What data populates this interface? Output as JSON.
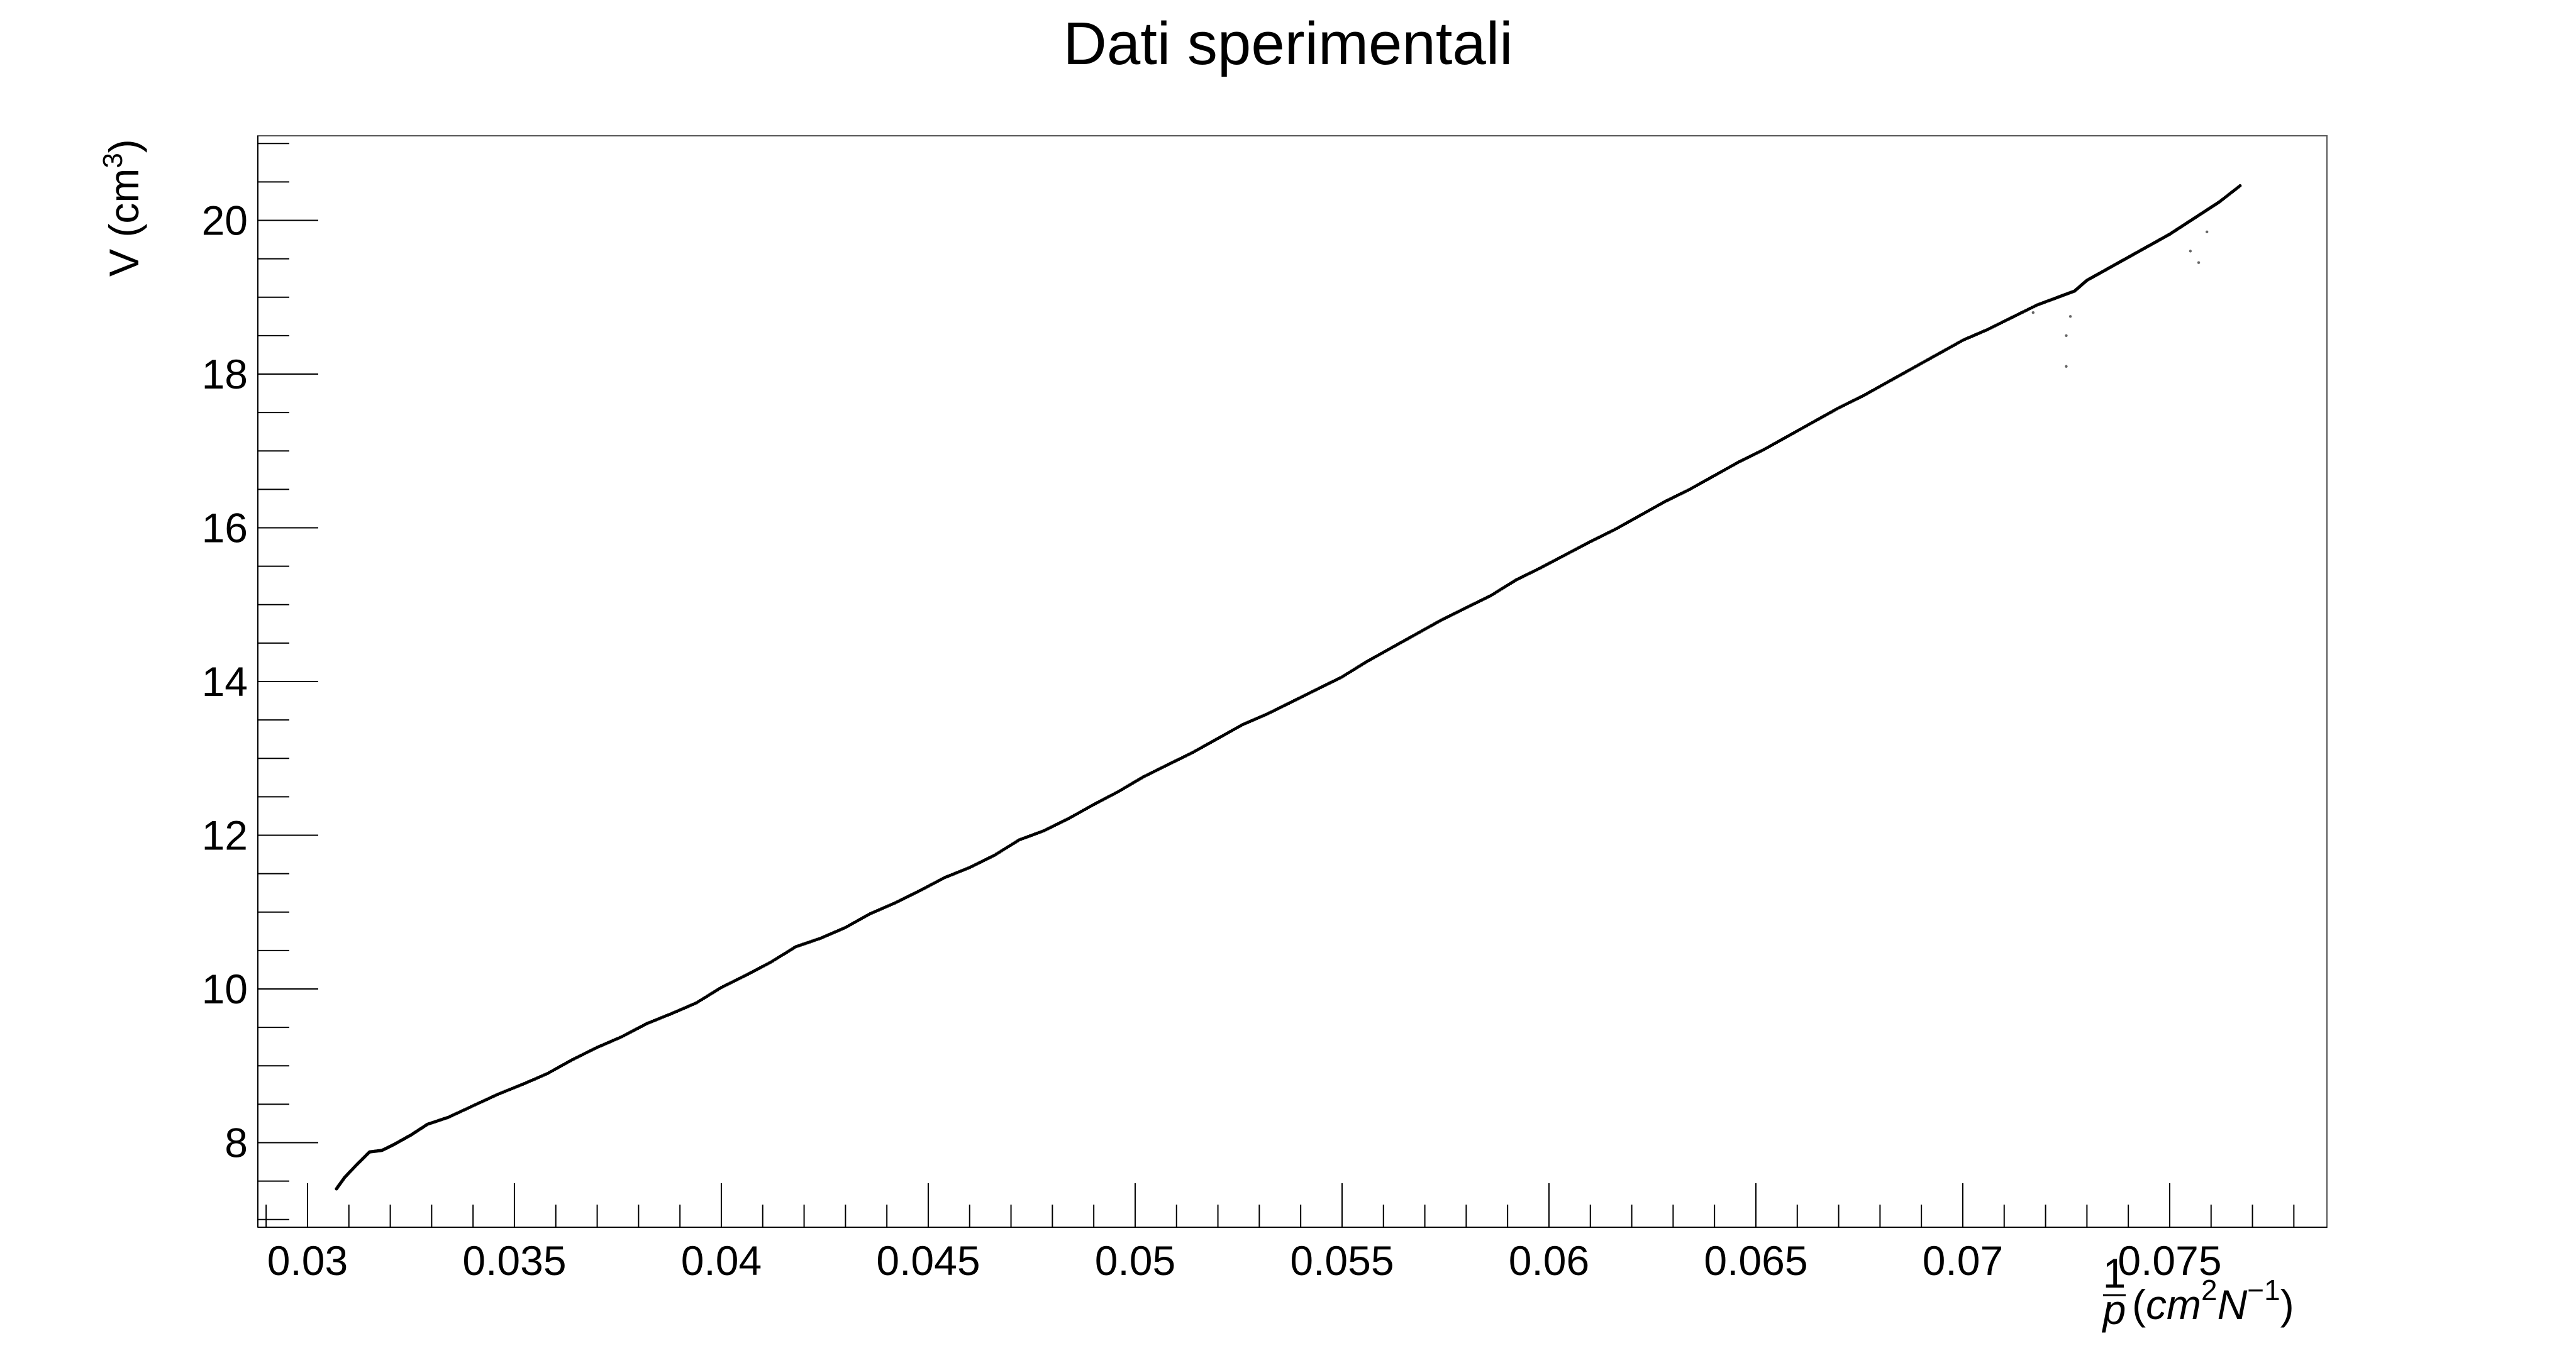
{
  "chart_data": {
    "type": "scatter",
    "title": "Dati sperimentali",
    "xlabel": {
      "fraction_numerator": "1",
      "fraction_denominator": "p",
      "open": "(",
      "unit_1": "cm",
      "unit_1_exp": "2",
      "unit_2": "N",
      "unit_2_exp": "−1",
      "close": ")"
    },
    "ylabel": {
      "text": "V (cm",
      "exp": "3",
      "close": ")"
    },
    "xlim": [
      0.0288,
      0.0788
    ],
    "ylim": [
      6.9,
      21.1
    ],
    "x_ticks": [
      {
        "value": 0.03,
        "label": "0.03"
      },
      {
        "value": 0.035,
        "label": "0.035"
      },
      {
        "value": 0.04,
        "label": "0.04"
      },
      {
        "value": 0.045,
        "label": "0.045"
      },
      {
        "value": 0.05,
        "label": "0.05"
      },
      {
        "value": 0.055,
        "label": "0.055"
      },
      {
        "value": 0.06,
        "label": "0.06"
      },
      {
        "value": 0.065,
        "label": "0.065"
      },
      {
        "value": 0.07,
        "label": "0.07"
      },
      {
        "value": 0.075,
        "label": "0.075"
      }
    ],
    "y_ticks": [
      {
        "value": 8,
        "label": "8"
      },
      {
        "value": 10,
        "label": "10"
      },
      {
        "value": 12,
        "label": "12"
      },
      {
        "value": 14,
        "label": "14"
      },
      {
        "value": 16,
        "label": "16"
      },
      {
        "value": 18,
        "label": "18"
      },
      {
        "value": 20,
        "label": "20"
      }
    ],
    "x_minor_step": 0.001,
    "y_minor_step": 0.5,
    "grid": false,
    "legend": "none",
    "marker_color": "#000000",
    "series": [
      {
        "x": [
          0.0307,
          0.0309,
          0.0312,
          0.0315,
          0.0318,
          0.0321,
          0.0325,
          0.0329,
          0.0334,
          0.034,
          0.0346,
          0.0352,
          0.0358,
          0.0364,
          0.037,
          0.0376,
          0.0382,
          0.0388,
          0.0394,
          0.04,
          0.0406,
          0.0412,
          0.0418,
          0.0424,
          0.043,
          0.0436,
          0.0442,
          0.0448,
          0.0454,
          0.046,
          0.0466,
          0.0472,
          0.0478,
          0.0484,
          0.049,
          0.0496,
          0.0502,
          0.0508,
          0.0514,
          0.052,
          0.0526,
          0.0532,
          0.0538,
          0.0544,
          0.055,
          0.0556,
          0.0562,
          0.0568,
          0.0574,
          0.058,
          0.0586,
          0.0592,
          0.0598,
          0.0604,
          0.061,
          0.0616,
          0.0622,
          0.0628,
          0.0634,
          0.064,
          0.0646,
          0.0652,
          0.0658,
          0.0664,
          0.067,
          0.0676,
          0.0682,
          0.0688,
          0.0694,
          0.07,
          0.0706,
          0.0712,
          0.0718,
          0.0723,
          0.0727,
          0.073,
          0.0734,
          0.0738,
          0.0742,
          0.0746,
          0.075,
          0.0754,
          0.0758,
          0.0762,
          0.0767
        ],
        "y": [
          7.4,
          7.55,
          7.72,
          7.88,
          7.9,
          7.98,
          8.1,
          8.24,
          8.33,
          8.48,
          8.63,
          8.76,
          8.9,
          9.08,
          9.24,
          9.38,
          9.55,
          9.68,
          9.82,
          10.02,
          10.18,
          10.35,
          10.55,
          10.66,
          10.8,
          10.98,
          11.12,
          11.28,
          11.45,
          11.58,
          11.74,
          11.94,
          12.06,
          12.22,
          12.4,
          12.57,
          12.76,
          12.92,
          13.08,
          13.26,
          13.44,
          13.58,
          13.74,
          13.9,
          14.06,
          14.26,
          14.44,
          14.62,
          14.8,
          14.96,
          15.12,
          15.32,
          15.48,
          15.65,
          15.82,
          15.98,
          16.16,
          16.34,
          16.5,
          16.68,
          16.86,
          17.02,
          17.2,
          17.38,
          17.56,
          17.72,
          17.9,
          18.08,
          18.26,
          18.44,
          18.58,
          18.74,
          18.9,
          19.0,
          19.08,
          19.22,
          19.34,
          19.46,
          19.58,
          19.7,
          19.82,
          19.96,
          20.1,
          20.24,
          20.45
        ]
      },
      {
        "x": [
          0.0725,
          0.0725,
          0.0726,
          0.0755,
          0.0757,
          0.0759,
          0.0717,
          0.0741
        ],
        "y": [
          18.1,
          18.5,
          18.75,
          19.6,
          19.45,
          19.85,
          18.8,
          19.55
        ]
      }
    ]
  }
}
